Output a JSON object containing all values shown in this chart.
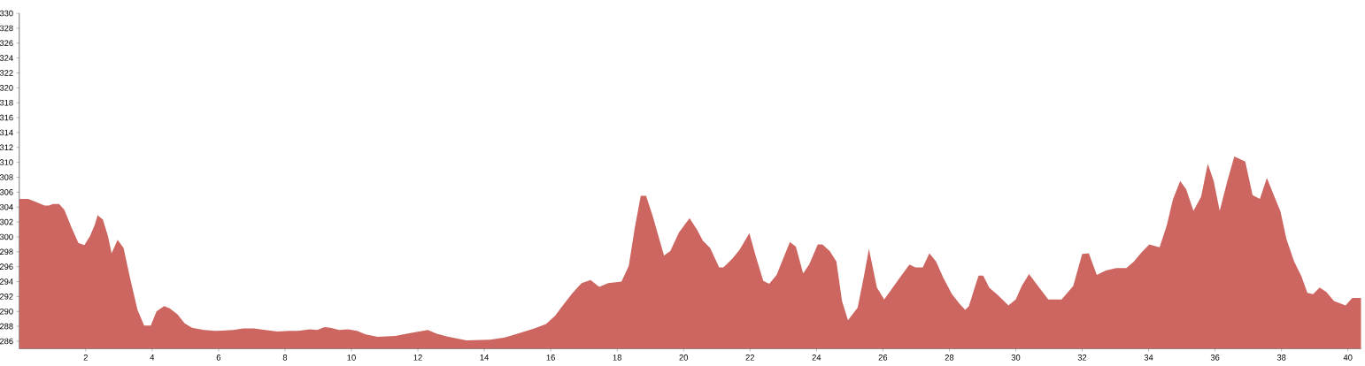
{
  "chart_data": {
    "type": "area",
    "color": "#cd6660",
    "x": [
      0,
      0.27,
      0.49,
      0.76,
      0.89,
      1.02,
      1.2,
      1.36,
      1.56,
      1.78,
      1.96,
      2.13,
      2.27,
      2.36,
      2.52,
      2.67,
      2.78,
      2.96,
      3.14,
      3.33,
      3.56,
      3.76,
      3.96,
      4.13,
      4.36,
      4.53,
      4.76,
      4.98,
      5.2,
      5.56,
      5.91,
      6.44,
      6.75,
      7.06,
      7.41,
      7.77,
      8.13,
      8.39,
      8.75,
      8.97,
      9.19,
      9.37,
      9.63,
      9.9,
      10.17,
      10.43,
      10.79,
      11.32,
      11.77,
      12.3,
      12.57,
      12.92,
      13.46,
      14.17,
      14.62,
      15.06,
      15.51,
      15.86,
      16.13,
      16.4,
      16.66,
      16.93,
      17.2,
      17.46,
      17.73,
      18.13,
      18.35,
      18.53,
      18.71,
      18.87,
      19.07,
      19.41,
      19.6,
      19.86,
      20.18,
      20.4,
      20.58,
      20.8,
      21.07,
      21.2,
      21.47,
      21.69,
      21.98,
      22.18,
      22.4,
      22.58,
      22.8,
      23.2,
      23.38,
      23.6,
      23.78,
      24.04,
      24.18,
      24.4,
      24.6,
      24.77,
      24.95,
      25.24,
      25.42,
      25.58,
      25.82,
      26.04,
      26.44,
      26.8,
      26.98,
      27.2,
      27.4,
      27.6,
      27.82,
      28.08,
      28.31,
      28.48,
      28.59,
      28.75,
      28.88,
      29.02,
      29.2,
      29.46,
      29.78,
      30.0,
      30.18,
      30.4,
      30.67,
      30.98,
      31.38,
      31.73,
      32.0,
      32.2,
      32.44,
      32.71,
      33.02,
      33.33,
      33.56,
      33.78,
      34.02,
      34.33,
      34.55,
      34.73,
      34.95,
      35.13,
      35.35,
      35.58,
      35.78,
      35.96,
      36.14,
      36.37,
      36.58,
      36.91,
      37.13,
      37.35,
      37.56,
      37.75,
      37.97,
      38.15,
      38.38,
      38.6,
      38.78,
      38.95,
      39.15,
      39.35,
      39.58,
      39.93,
      40.13,
      40.4
    ],
    "values": [
      305.1,
      305.1,
      304.7,
      304.2,
      304.2,
      304.4,
      304.4,
      303.6,
      301.4,
      299.2,
      298.9,
      300.1,
      301.6,
      302.9,
      302.3,
      300.1,
      297.8,
      299.6,
      298.5,
      294.6,
      290.2,
      288.1,
      288.1,
      290.0,
      290.7,
      290.4,
      289.6,
      288.4,
      287.8,
      287.5,
      287.4,
      287.5,
      287.7,
      287.7,
      287.5,
      287.3,
      287.4,
      287.4,
      287.6,
      287.5,
      287.9,
      287.8,
      287.5,
      287.6,
      287.4,
      286.9,
      286.6,
      286.7,
      287.1,
      287.5,
      287.0,
      286.6,
      286.1,
      286.2,
      286.5,
      287.1,
      287.7,
      288.3,
      289.4,
      291.0,
      292.5,
      293.8,
      294.2,
      293.3,
      293.8,
      294.0,
      296.1,
      301.2,
      305.5,
      305.5,
      302.8,
      297.5,
      298.1,
      300.6,
      302.5,
      301.0,
      299.5,
      298.5,
      295.9,
      295.9,
      297.1,
      298.3,
      300.5,
      297.3,
      294.1,
      293.7,
      294.9,
      299.3,
      298.7,
      295.1,
      296.3,
      299.0,
      299.0,
      298.1,
      296.7,
      291.4,
      288.8,
      290.5,
      294.5,
      298.4,
      293.2,
      291.6,
      294.1,
      296.3,
      295.9,
      295.9,
      297.8,
      296.7,
      294.5,
      292.3,
      291.0,
      290.2,
      290.7,
      293.0,
      294.8,
      294.8,
      293.2,
      292.2,
      290.8,
      291.6,
      293.4,
      295.0,
      293.4,
      291.6,
      291.6,
      293.4,
      297.7,
      297.8,
      294.9,
      295.5,
      295.8,
      295.8,
      296.7,
      297.9,
      299.0,
      298.6,
      301.6,
      305.0,
      307.5,
      306.4,
      303.5,
      305.4,
      309.8,
      307.5,
      303.5,
      307.5,
      310.8,
      310.1,
      305.6,
      305.1,
      307.9,
      305.8,
      303.4,
      299.7,
      296.7,
      294.7,
      292.5,
      292.3,
      293.2,
      292.6,
      291.4,
      290.8,
      291.8,
      291.8
    ],
    "xlim": [
      0,
      40.4
    ],
    "ylim": [
      285,
      330
    ],
    "xticks": [
      2,
      4,
      6,
      8,
      10,
      12,
      14,
      16,
      18,
      20,
      22,
      24,
      26,
      28,
      30,
      32,
      34,
      36,
      38,
      40
    ],
    "yticks": [
      286,
      288,
      290,
      292,
      294,
      296,
      298,
      300,
      302,
      304,
      306,
      308,
      310,
      312,
      314,
      316,
      318,
      320,
      322,
      324,
      326,
      328,
      330
    ]
  }
}
